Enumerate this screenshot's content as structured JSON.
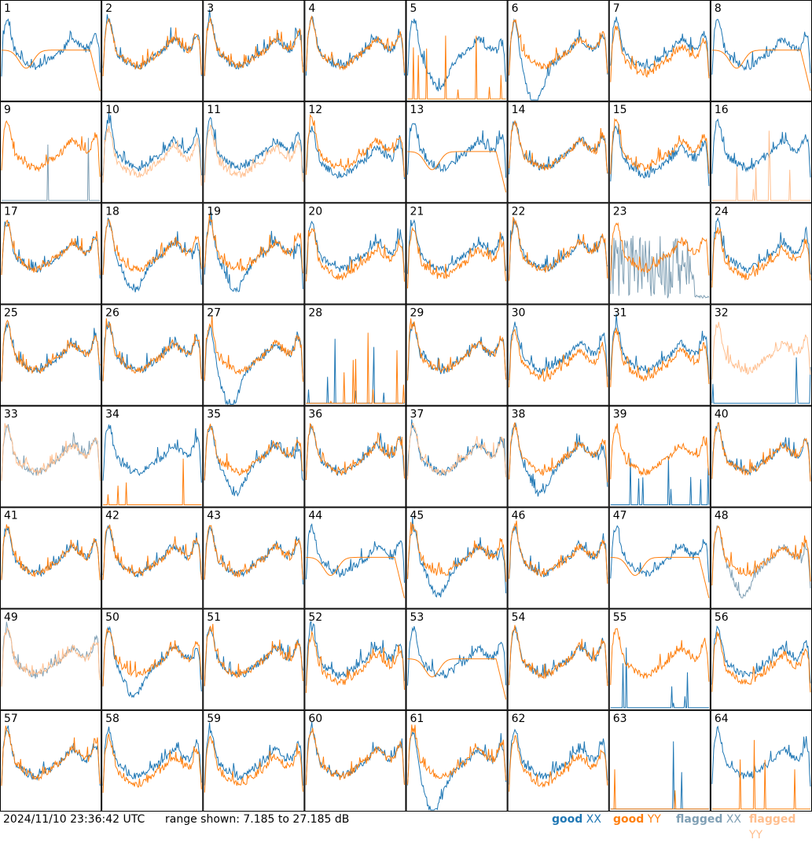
{
  "footer": {
    "timestamp": "2024/11/10 23:36:42 UTC",
    "range_text": "range shown: 7.185 to 27.185 dB"
  },
  "legend": [
    {
      "key": "good",
      "pol": "XX",
      "color": "#1f77b4"
    },
    {
      "key": "good",
      "pol": "YY",
      "color": "#ff7f0e"
    },
    {
      "key": "flagged",
      "pol": "XX",
      "color": "#7f9fb4"
    },
    {
      "key": "flagged",
      "pol": "YY",
      "color": "#ffbf8f"
    }
  ],
  "chart_data": {
    "type": "line",
    "grid": {
      "rows": 8,
      "cols": 8
    },
    "ylim": [
      7.185,
      27.185
    ],
    "yunit": "dB",
    "panel_labels": [
      "1",
      "2",
      "3",
      "4",
      "5",
      "6",
      "7",
      "8",
      "9",
      "10",
      "11",
      "12",
      "13",
      "14",
      "15",
      "16",
      "17",
      "18",
      "19",
      "20",
      "21",
      "22",
      "23",
      "24",
      "25",
      "26",
      "27",
      "28",
      "29",
      "30",
      "31",
      "32",
      "33",
      "34",
      "35",
      "36",
      "37",
      "38",
      "39",
      "40",
      "41",
      "42",
      "43",
      "44",
      "45",
      "46",
      "47",
      "48",
      "49",
      "50",
      "51",
      "52",
      "53",
      "54",
      "55",
      "56",
      "57",
      "58",
      "59",
      "60",
      "61",
      "62",
      "63",
      "64"
    ],
    "panels": [
      {
        "xx": "normal",
        "yy": "droop",
        "yyFlag": false,
        "xxFlag": false
      },
      {
        "xx": "normal",
        "yy": "normal"
      },
      {
        "xx": "normal",
        "yy": "normal"
      },
      {
        "xx": "normal",
        "yy": "normal"
      },
      {
        "xx": "dip",
        "yy": "zero"
      },
      {
        "xx": "deepdip",
        "yy": "normal"
      },
      {
        "xx": "normal",
        "yy": "low"
      },
      {
        "xx": "normal",
        "yy": "droop"
      },
      {
        "xx": "zero",
        "yy": "normal",
        "xxFlag": true
      },
      {
        "xx": "normal",
        "yy": "low",
        "yyFlag": true
      },
      {
        "xx": "normal",
        "yy": "low",
        "yyFlag": true
      },
      {
        "xx": "low",
        "yy": "normal"
      },
      {
        "xx": "normal",
        "yy": "droop"
      },
      {
        "xx": "normal",
        "yy": "normal"
      },
      {
        "xx": "low",
        "yy": "normal"
      },
      {
        "xx": "normal",
        "yy": "zero",
        "yyFlag": true
      },
      {
        "xx": "normal",
        "yy": "normal"
      },
      {
        "xx": "dip",
        "yy": "normal"
      },
      {
        "xx": "dip",
        "yy": "normal"
      },
      {
        "xx": "normal",
        "yy": "low"
      },
      {
        "xx": "normal",
        "yy": "low"
      },
      {
        "xx": "normal",
        "yy": "normal"
      },
      {
        "xx": "noisy",
        "yy": "normal",
        "xxFlag": true
      },
      {
        "xx": "normal",
        "yy": "low"
      },
      {
        "xx": "normal",
        "yy": "normal"
      },
      {
        "xx": "normal",
        "yy": "normal"
      },
      {
        "xx": "deepdip",
        "yy": "normal"
      },
      {
        "xx": "zero",
        "yy": "zero"
      },
      {
        "xx": "normal",
        "yy": "normal"
      },
      {
        "xx": "normal",
        "yy": "low"
      },
      {
        "xx": "normal",
        "yy": "low"
      },
      {
        "xx": "zero",
        "yy": "normal",
        "yyFlag": true
      },
      {
        "xx": "normal",
        "yy": "normal",
        "xxFlag": true,
        "yyFlag": true
      },
      {
        "xx": "normal",
        "yy": "zero"
      },
      {
        "xx": "dip",
        "yy": "normal"
      },
      {
        "xx": "normal",
        "yy": "normal"
      },
      {
        "xx": "normal",
        "yy": "normal",
        "yyFlag": true
      },
      {
        "xx": "dip",
        "yy": "normal"
      },
      {
        "xx": "zero",
        "yy": "normal"
      },
      {
        "xx": "normal",
        "yy": "normal"
      },
      {
        "xx": "normal",
        "yy": "normal"
      },
      {
        "xx": "normal",
        "yy": "normal"
      },
      {
        "xx": "normal",
        "yy": "normal"
      },
      {
        "xx": "normal",
        "yy": "droop"
      },
      {
        "xx": "dip",
        "yy": "normal"
      },
      {
        "xx": "normal",
        "yy": "normal"
      },
      {
        "xx": "normal",
        "yy": "droop"
      },
      {
        "xx": "dip",
        "yy": "normal",
        "xxFlag": true
      },
      {
        "xx": "normal",
        "yy": "normal",
        "xxFlag": true,
        "yyFlag": true
      },
      {
        "xx": "dip",
        "yy": "normal"
      },
      {
        "xx": "normal",
        "yy": "normal"
      },
      {
        "xx": "normal",
        "yy": "low"
      },
      {
        "xx": "normal",
        "yy": "droop"
      },
      {
        "xx": "normal",
        "yy": "normal"
      },
      {
        "xx": "zero",
        "yy": "normal"
      },
      {
        "xx": "normal",
        "yy": "low"
      },
      {
        "xx": "normal",
        "yy": "normal"
      },
      {
        "xx": "normal",
        "yy": "low"
      },
      {
        "xx": "normal",
        "yy": "low"
      },
      {
        "xx": "normal",
        "yy": "normal"
      },
      {
        "xx": "deepdip",
        "yy": "normal"
      },
      {
        "xx": "normal",
        "yy": "low"
      },
      {
        "xx": "zero",
        "yy": "zero"
      },
      {
        "xx": "normal",
        "yy": "zero"
      }
    ]
  }
}
